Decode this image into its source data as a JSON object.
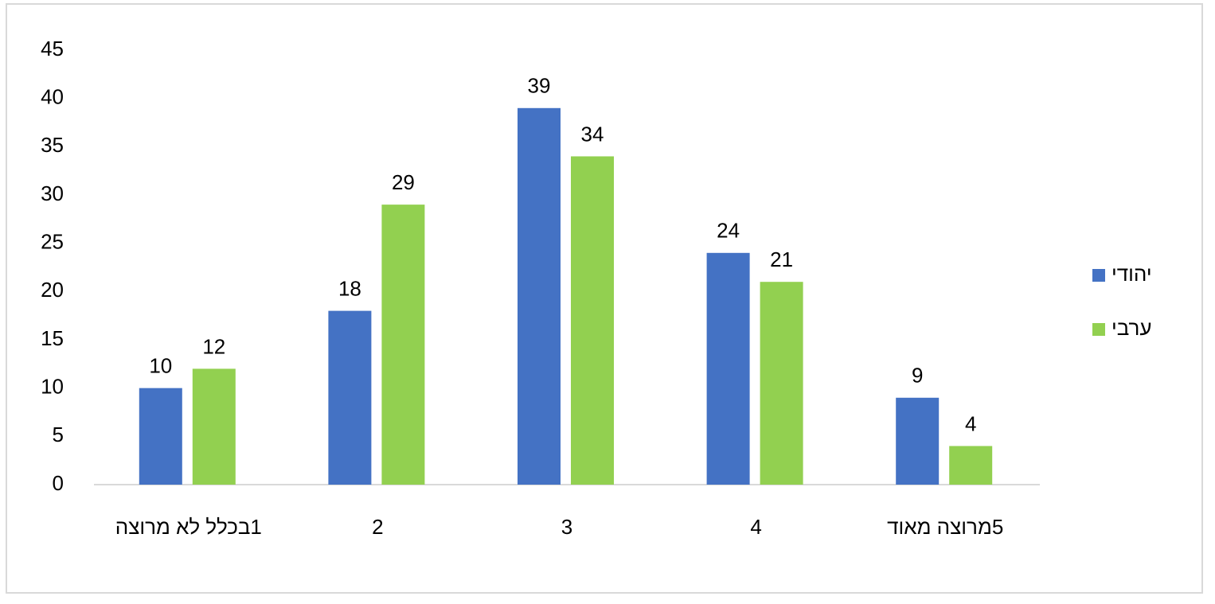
{
  "chart_data": {
    "type": "bar",
    "categories": [
      "1בכלל לא מרוצה",
      "2",
      "3",
      "4",
      "5מרוצה מאוד"
    ],
    "series": [
      {
        "name": "יהודי",
        "color": "#4472c4",
        "values": [
          10,
          18,
          39,
          24,
          9
        ]
      },
      {
        "name": "ערבי",
        "color": "#92d050",
        "values": [
          12,
          29,
          34,
          21,
          4
        ]
      }
    ],
    "ylim": [
      0,
      45
    ],
    "yticks": [
      0,
      5,
      10,
      15,
      20,
      25,
      30,
      35,
      40,
      45
    ],
    "legend": "right"
  }
}
